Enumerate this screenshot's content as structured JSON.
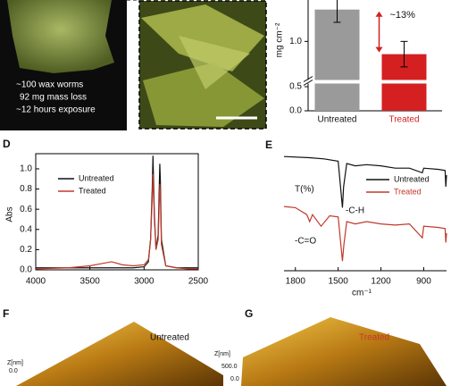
{
  "photo": {
    "lines": [
      "~100 wax worms",
      "92 mg mass loss",
      "~12 hours exposure"
    ]
  },
  "panel_labels": [
    "D",
    "E",
    "F",
    "G"
  ],
  "chart_data": [
    {
      "type": "bar",
      "ylabel": "mg cm⁻²",
      "categories": [
        "Untreated",
        "Treated"
      ],
      "values": [
        1.1,
        0.96
      ],
      "errors": [
        0.04,
        0.04
      ],
      "colors": [
        "#9a9a9a",
        "#d42020"
      ],
      "ylim": [
        0,
        1.13
      ],
      "yticks": [
        {
          "value": 0,
          "label": "0.0"
        },
        {
          "value": 0.5,
          "label": "0.5"
        },
        {
          "value": 1.0,
          "label": "1.0"
        }
      ],
      "axis_break": [
        0.5,
        0.9
      ],
      "annotation": "~13%"
    },
    {
      "type": "line",
      "ylabel": "Abs",
      "x": [
        4000,
        3700,
        3500,
        3400,
        3300,
        3200,
        3100,
        3000,
        2960,
        2940,
        2925,
        2918,
        2905,
        2890,
        2870,
        2855,
        2850,
        2840,
        2800,
        2700,
        2600,
        2500
      ],
      "series": [
        {
          "name": "Untreated",
          "color": "#111111",
          "values": [
            0.02,
            0.02,
            0.02,
            0.02,
            0.02,
            0.02,
            0.02,
            0.03,
            0.08,
            0.3,
            0.8,
            1.13,
            0.55,
            0.2,
            0.35,
            1.05,
            0.9,
            0.3,
            0.04,
            0.02,
            0.02,
            0.02
          ]
        },
        {
          "name": "Treated",
          "color": "#c0392b",
          "values": [
            0.01,
            0.02,
            0.04,
            0.06,
            0.08,
            0.05,
            0.04,
            0.05,
            0.1,
            0.3,
            0.7,
            0.95,
            0.5,
            0.2,
            0.3,
            0.85,
            0.75,
            0.25,
            0.04,
            0.02,
            0.01,
            0.01
          ]
        }
      ],
      "xlim": [
        4000,
        2500
      ],
      "xticks": [
        4000,
        3500,
        3000,
        2500
      ],
      "ylim": [
        0,
        1.15
      ],
      "yticks": [
        {
          "value": 0,
          "label": "0.0"
        },
        {
          "value": 0.2,
          "label": "0.2"
        },
        {
          "value": 0.4,
          "label": "0.4"
        },
        {
          "value": 0.6,
          "label": "0.6"
        },
        {
          "value": 0.8,
          "label": "0.8"
        },
        {
          "value": 1.0,
          "label": "1.0"
        }
      ]
    },
    {
      "type": "spectrum",
      "ylabel": "T(%)",
      "xlabel": "cm⁻¹",
      "xlim": [
        1880,
        740
      ],
      "xticks": [
        1800,
        1500,
        1200,
        900
      ],
      "ylim": [
        0,
        100
      ],
      "series": [
        {
          "name": "Untreated",
          "color": "#111111",
          "x": [
            1880,
            1700,
            1600,
            1500,
            1470,
            1462,
            1440,
            1380,
            1300,
            1200,
            1100,
            1000,
            910,
            900,
            800,
            750,
            745,
            740
          ],
          "values": [
            96,
            95,
            94,
            92,
            52,
            70,
            90,
            88,
            89,
            88,
            86,
            86,
            82,
            86,
            85,
            84,
            70,
            80
          ]
        },
        {
          "name": "Treated",
          "color": "#c0392b",
          "x": [
            1880,
            1800,
            1720,
            1700,
            1680,
            1620,
            1560,
            1500,
            1470,
            1460,
            1440,
            1380,
            1300,
            1200,
            1100,
            1000,
            910,
            900,
            800,
            750,
            745,
            740
          ],
          "values": [
            53,
            52,
            46,
            40,
            46,
            36,
            45,
            44,
            6,
            20,
            40,
            38,
            40,
            38,
            37,
            38,
            26,
            36,
            35,
            34,
            22,
            30
          ]
        }
      ],
      "annotations": [
        "-C-H",
        "-C=O"
      ]
    }
  ],
  "afm": {
    "f": {
      "title": "Untreated",
      "zlabel": "Z[nm]",
      "zticks": [
        "0.0"
      ]
    },
    "g": {
      "title": "Treated",
      "zlabel": "Z[nm]",
      "zticks": [
        "500.0",
        "0.0"
      ]
    }
  }
}
